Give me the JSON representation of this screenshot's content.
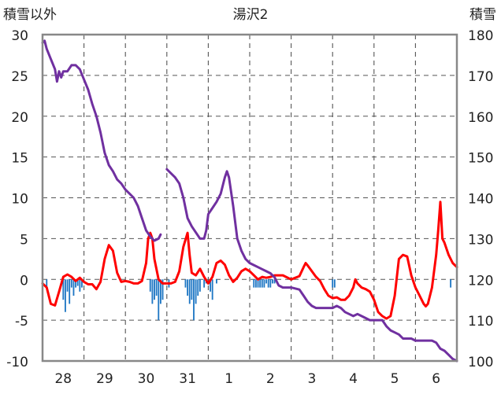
{
  "chart_data": {
    "type": "line",
    "title": "湯沢2",
    "y_left_label": "積雪以外",
    "y_right_label": "積雪",
    "x_range": [
      0,
      10
    ],
    "y_left_range": [
      -10,
      30
    ],
    "y_right_range": [
      100,
      180
    ],
    "y_left_ticks": [
      "30",
      "25",
      "20",
      "15",
      "10",
      "5",
      "0",
      "-5",
      "-10"
    ],
    "y_right_ticks": [
      "180",
      "170",
      "160",
      "150",
      "140",
      "130",
      "120",
      "110",
      "100"
    ],
    "x_ticks": [
      {
        "label": "28",
        "x": 0.5
      },
      {
        "label": "29",
        "x": 1.5
      },
      {
        "label": "30",
        "x": 2.5
      },
      {
        "label": "31",
        "x": 3.5
      },
      {
        "label": "1",
        "x": 4.5
      },
      {
        "label": "2",
        "x": 5.5
      },
      {
        "label": "3",
        "x": 6.5
      },
      {
        "label": "4",
        "x": 7.5
      },
      {
        "label": "5",
        "x": 8.5
      },
      {
        "label": "6",
        "x": 9.5
      }
    ],
    "grid": true,
    "colors": {
      "temperature": "#ff0000",
      "snow_depth": "#7030a0",
      "precipitation": "#1f77c4"
    },
    "series": [
      {
        "axis": "left",
        "style": "line",
        "color": "#ff0000",
        "points": [
          [
            0.0,
            -0.5
          ],
          [
            0.1,
            -1
          ],
          [
            0.2,
            -3
          ],
          [
            0.3,
            -3.2
          ],
          [
            0.4,
            -1.5
          ],
          [
            0.5,
            0.3
          ],
          [
            0.6,
            0.6
          ],
          [
            0.7,
            0.3
          ],
          [
            0.8,
            -0.2
          ],
          [
            0.9,
            0.2
          ],
          [
            1.0,
            -0.3
          ],
          [
            1.1,
            -0.6
          ],
          [
            1.2,
            -0.6
          ],
          [
            1.3,
            -1.2
          ],
          [
            1.4,
            -0.3
          ],
          [
            1.5,
            2.5
          ],
          [
            1.6,
            4.2
          ],
          [
            1.7,
            3.5
          ],
          [
            1.8,
            0.8
          ],
          [
            1.9,
            -0.3
          ],
          [
            2.0,
            -0.2
          ],
          [
            2.1,
            -0.3
          ],
          [
            2.2,
            -0.5
          ],
          [
            2.3,
            -0.5
          ],
          [
            2.4,
            -0.2
          ],
          [
            2.5,
            2
          ],
          [
            2.55,
            5
          ],
          [
            2.6,
            5.7
          ],
          [
            2.65,
            5
          ],
          [
            2.7,
            2.5
          ],
          [
            2.8,
            0
          ],
          [
            2.9,
            -0.5
          ],
          [
            3.0,
            -0.5
          ],
          [
            3.1,
            -0.5
          ],
          [
            3.2,
            -0.3
          ],
          [
            3.3,
            1
          ],
          [
            3.4,
            4
          ],
          [
            3.5,
            5.7
          ],
          [
            3.55,
            3
          ],
          [
            3.6,
            0.8
          ],
          [
            3.7,
            0.5
          ],
          [
            3.8,
            1.3
          ],
          [
            3.9,
            0.3
          ],
          [
            4.0,
            -0.5
          ],
          [
            4.1,
            0.3
          ],
          [
            4.2,
            2
          ],
          [
            4.3,
            2.3
          ],
          [
            4.4,
            1.8
          ],
          [
            4.5,
            0.5
          ],
          [
            4.6,
            -0.3
          ],
          [
            4.7,
            0.2
          ],
          [
            4.8,
            1
          ],
          [
            4.9,
            1.3
          ],
          [
            5.0,
            1
          ],
          [
            5.1,
            0.5
          ],
          [
            5.2,
            0
          ],
          [
            5.3,
            0.3
          ],
          [
            5.4,
            0.2
          ],
          [
            5.5,
            0.3
          ],
          [
            5.6,
            0.5
          ],
          [
            5.8,
            0.5
          ],
          [
            6.0,
            0
          ],
          [
            6.2,
            0.4
          ],
          [
            6.3,
            1.5
          ],
          [
            6.35,
            2
          ],
          [
            6.4,
            1.7
          ],
          [
            6.5,
            1
          ],
          [
            6.6,
            0.3
          ],
          [
            6.7,
            -0.2
          ],
          [
            6.8,
            -1.2
          ],
          [
            6.9,
            -2
          ],
          [
            7.0,
            -2.3
          ],
          [
            7.1,
            -2.2
          ],
          [
            7.2,
            -2.5
          ],
          [
            7.3,
            -2.5
          ],
          [
            7.4,
            -2
          ],
          [
            7.5,
            -1
          ],
          [
            7.55,
            0
          ],
          [
            7.6,
            -0.5
          ],
          [
            7.7,
            -1
          ],
          [
            7.8,
            -1.2
          ],
          [
            7.9,
            -1.5
          ],
          [
            8.0,
            -2.5
          ],
          [
            8.1,
            -4
          ],
          [
            8.2,
            -4.5
          ],
          [
            8.3,
            -4.8
          ],
          [
            8.4,
            -4.5
          ],
          [
            8.5,
            -2
          ],
          [
            8.6,
            2.5
          ],
          [
            8.7,
            3
          ],
          [
            8.8,
            2.8
          ],
          [
            8.9,
            0.5
          ],
          [
            9.0,
            -1
          ],
          [
            9.1,
            -2
          ],
          [
            9.2,
            -3
          ],
          [
            9.25,
            -3.3
          ],
          [
            9.3,
            -3
          ],
          [
            9.4,
            -1
          ],
          [
            9.5,
            3
          ],
          [
            9.55,
            6
          ],
          [
            9.6,
            9.5
          ],
          [
            9.65,
            5
          ],
          [
            9.7,
            4.5
          ],
          [
            9.8,
            3
          ],
          [
            9.9,
            2
          ],
          [
            10.0,
            1.5
          ]
        ]
      },
      {
        "axis": "right",
        "style": "line",
        "color": "#7030a0",
        "points": [
          [
            0.0,
            178
          ],
          [
            0.05,
            178.5
          ],
          [
            0.1,
            176.5
          ],
          [
            0.2,
            174
          ],
          [
            0.3,
            171.5
          ],
          [
            0.35,
            168.5
          ],
          [
            0.4,
            171
          ],
          [
            0.45,
            169.5
          ],
          [
            0.5,
            171
          ],
          [
            0.6,
            171
          ],
          [
            0.7,
            172.5
          ],
          [
            0.8,
            172.5
          ],
          [
            0.9,
            171.5
          ],
          [
            1.0,
            169
          ],
          [
            1.1,
            166.5
          ],
          [
            1.2,
            163
          ],
          [
            1.3,
            160
          ],
          [
            1.4,
            156
          ],
          [
            1.5,
            151
          ],
          [
            1.6,
            148
          ],
          [
            1.7,
            146.5
          ],
          [
            1.8,
            144.5
          ],
          [
            1.9,
            143.5
          ],
          [
            2.0,
            142
          ],
          [
            2.1,
            141
          ],
          [
            2.2,
            140
          ],
          [
            2.3,
            138
          ],
          [
            2.4,
            135
          ],
          [
            2.5,
            132
          ],
          [
            2.6,
            130.5
          ],
          [
            2.7,
            129.5
          ],
          [
            2.8,
            130
          ],
          [
            2.85,
            131
          ],
          [
            2.86,
            null
          ],
          [
            3.0,
            147
          ],
          [
            3.1,
            146
          ],
          [
            3.2,
            145
          ],
          [
            3.3,
            143.5
          ],
          [
            3.4,
            140
          ],
          [
            3.5,
            135
          ],
          [
            3.6,
            133
          ],
          [
            3.7,
            131.5
          ],
          [
            3.8,
            130
          ],
          [
            3.9,
            130
          ],
          [
            3.95,
            132
          ],
          [
            4.0,
            136
          ],
          [
            4.1,
            137.5
          ],
          [
            4.2,
            139
          ],
          [
            4.3,
            141
          ],
          [
            4.4,
            145
          ],
          [
            4.45,
            146.5
          ],
          [
            4.5,
            145
          ],
          [
            4.6,
            138
          ],
          [
            4.7,
            130
          ],
          [
            4.8,
            127
          ],
          [
            4.9,
            125
          ],
          [
            5.0,
            124
          ],
          [
            5.1,
            123.5
          ],
          [
            5.2,
            123
          ],
          [
            5.3,
            122.5
          ],
          [
            5.4,
            122
          ],
          [
            5.5,
            121.5
          ],
          [
            5.6,
            120.5
          ],
          [
            5.7,
            118.5
          ],
          [
            5.8,
            118
          ],
          [
            5.9,
            118
          ],
          [
            6.0,
            118
          ],
          [
            6.2,
            117.5
          ],
          [
            6.3,
            116
          ],
          [
            6.4,
            114.5
          ],
          [
            6.5,
            113.5
          ],
          [
            6.6,
            113
          ],
          [
            6.8,
            113
          ],
          [
            7.0,
            113
          ],
          [
            7.1,
            113.5
          ],
          [
            7.2,
            113
          ],
          [
            7.3,
            112
          ],
          [
            7.4,
            111.5
          ],
          [
            7.5,
            111
          ],
          [
            7.6,
            111.5
          ],
          [
            7.7,
            111
          ],
          [
            7.8,
            110.5
          ],
          [
            7.9,
            110
          ],
          [
            8.0,
            110
          ],
          [
            8.1,
            110
          ],
          [
            8.2,
            110
          ],
          [
            8.3,
            108.5
          ],
          [
            8.4,
            107.5
          ],
          [
            8.5,
            107
          ],
          [
            8.6,
            106.5
          ],
          [
            8.7,
            105.5
          ],
          [
            8.8,
            105.5
          ],
          [
            8.9,
            105.5
          ],
          [
            9.0,
            105
          ],
          [
            9.1,
            105
          ],
          [
            9.2,
            105
          ],
          [
            9.3,
            105
          ],
          [
            9.4,
            105
          ],
          [
            9.5,
            104.5
          ],
          [
            9.6,
            103
          ],
          [
            9.7,
            102.5
          ],
          [
            9.8,
            101.5
          ],
          [
            9.9,
            100.5
          ],
          [
            10.0,
            100
          ]
        ]
      },
      {
        "axis": "left",
        "style": "bar",
        "color": "#1f77c4",
        "bar_width": 0.035,
        "points": [
          [
            0.1,
            -1
          ],
          [
            0.5,
            -2.5
          ],
          [
            0.55,
            -4
          ],
          [
            0.6,
            -1.5
          ],
          [
            0.65,
            -3
          ],
          [
            0.7,
            -1
          ],
          [
            0.75,
            -2
          ],
          [
            0.8,
            -1
          ],
          [
            0.85,
            -0.8
          ],
          [
            0.9,
            -1.5
          ],
          [
            0.95,
            -1
          ],
          [
            2.6,
            -1.5
          ],
          [
            2.65,
            -3
          ],
          [
            2.7,
            -2.5
          ],
          [
            2.75,
            -2
          ],
          [
            2.8,
            -5
          ],
          [
            2.85,
            -3
          ],
          [
            2.9,
            -2.5
          ],
          [
            3.05,
            -1
          ],
          [
            3.45,
            -1
          ],
          [
            3.5,
            -2
          ],
          [
            3.55,
            -3
          ],
          [
            3.6,
            -2.5
          ],
          [
            3.65,
            -5
          ],
          [
            3.7,
            -3
          ],
          [
            3.75,
            -2
          ],
          [
            3.8,
            -1.5
          ],
          [
            3.9,
            -1
          ],
          [
            3.95,
            -0.5
          ],
          [
            4.05,
            -1.5
          ],
          [
            4.1,
            -2.5
          ],
          [
            4.2,
            -0.5
          ],
          [
            5.1,
            -1
          ],
          [
            5.15,
            -1
          ],
          [
            5.2,
            -1
          ],
          [
            5.25,
            -1
          ],
          [
            5.3,
            -1
          ],
          [
            5.35,
            -1
          ],
          [
            5.4,
            -0.5
          ],
          [
            5.45,
            -1
          ],
          [
            5.5,
            -1
          ],
          [
            5.55,
            -0.5
          ],
          [
            5.6,
            -0.5
          ],
          [
            7.0,
            -1
          ],
          [
            7.05,
            -1
          ],
          [
            9.85,
            -1
          ]
        ]
      }
    ]
  }
}
